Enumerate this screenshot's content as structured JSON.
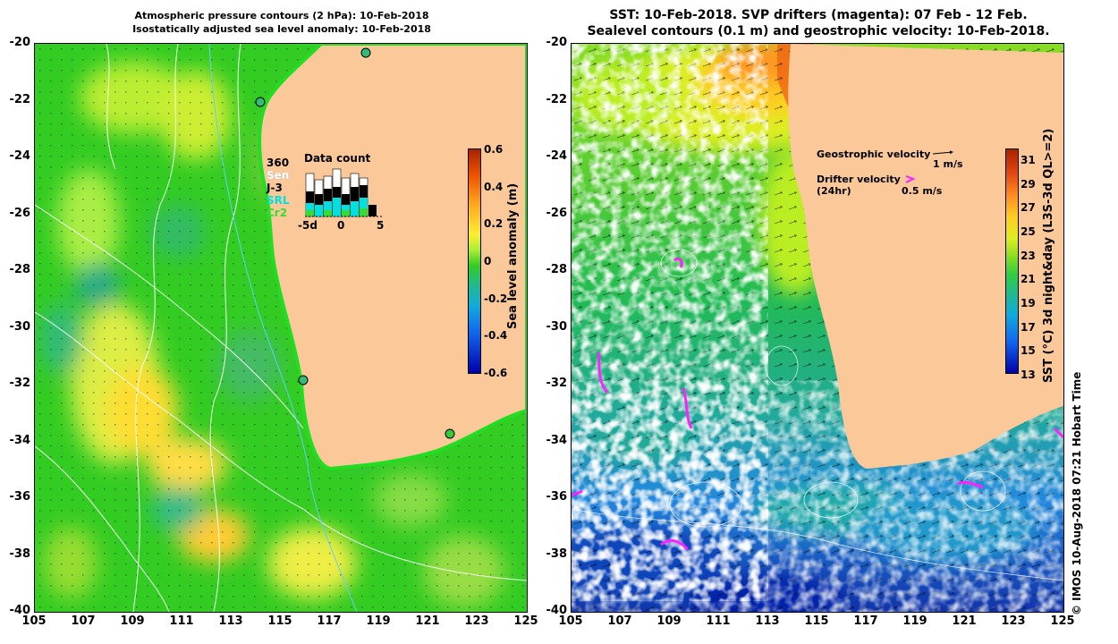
{
  "left_panel": {
    "title_line1": "Atmospheric pressure contours (2 hPa): 10-Feb-2018",
    "title_line2": "Isostatically adjusted sea level anomaly: 10-Feb-2018",
    "lat_labels": [
      "-20",
      "-22",
      "-24",
      "-26",
      "-28",
      "-30",
      "-32",
      "-34",
      "-36",
      "-38",
      "-40"
    ],
    "lon_labels": [
      "105",
      "107",
      "109",
      "111",
      "113",
      "115",
      "117",
      "119",
      "121",
      "123",
      "125"
    ],
    "colorbar": {
      "label": "Sea level anomaly (m)",
      "ticks": [
        "0.6",
        "0.4",
        "0.2",
        "0",
        "-0.2",
        "-0.4",
        "-0.6"
      ],
      "range": [
        -0.6,
        0.6
      ]
    },
    "inset": {
      "title": "Data count",
      "sat_labels": [
        "360",
        "Sen",
        "J-3",
        "SRL",
        "Cr2"
      ],
      "sat_colors": [
        "#000000",
        "#ffffff",
        "#000000",
        "#00e0e0",
        "#33dd33"
      ],
      "x_labels": [
        "-5d",
        "0",
        "5"
      ]
    }
  },
  "right_panel": {
    "title_line1": "SST: 10-Feb-2018. SVP drifters (magenta): 07 Feb - 12 Feb.",
    "title_line2": "Sealevel contours (0.1 m) and geostrophic velocity: 10-Feb-2018.",
    "lat_labels": [
      "-20",
      "-22",
      "-24",
      "-26",
      "-28",
      "-30",
      "-32",
      "-34",
      "-36",
      "-38",
      "-40"
    ],
    "lon_labels": [
      "105",
      "107",
      "109",
      "111",
      "113",
      "115",
      "117",
      "119",
      "121",
      "123",
      "125"
    ],
    "legend": {
      "geo_label": "Geostrophic velocity",
      "geo_scale": "1 m/s",
      "drifter_label_1": "Drifter velocity",
      "drifter_label_2": "(24hr)",
      "drifter_scale": "0.5 m/s"
    },
    "colorbar": {
      "label": "SST (°C) 3d night&day (L3S-3d QL>=2)",
      "ticks": [
        "31",
        "29",
        "27",
        "25",
        "23",
        "21",
        "19",
        "17",
        "15",
        "13"
      ],
      "range": [
        13,
        32
      ]
    }
  },
  "footer": {
    "credit": "© IMOS 10-Aug-2018 07:21 Hobart Time"
  },
  "colors": {
    "land": "#fbc89a",
    "drifter": "#ff22ff",
    "coast_fill": "#22dd22"
  }
}
